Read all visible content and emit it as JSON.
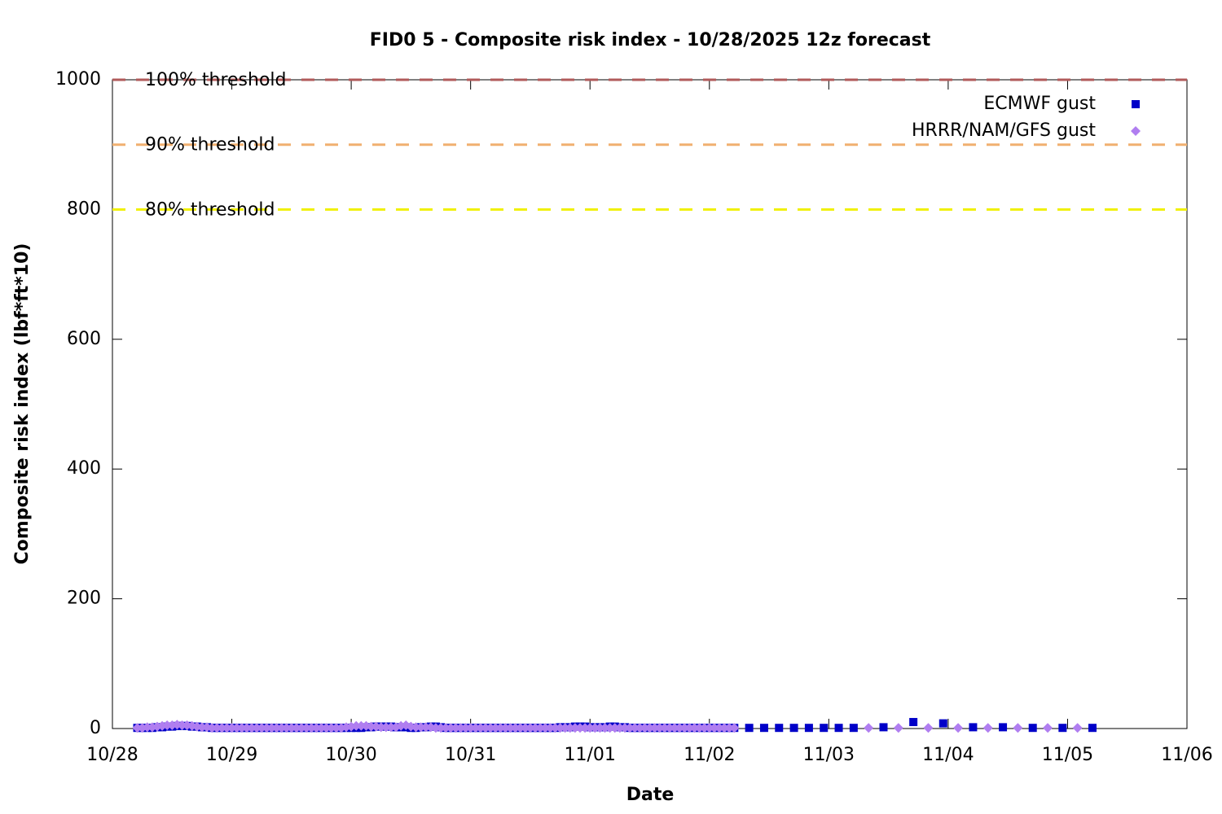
{
  "chart_data": {
    "type": "scatter",
    "title": "FID0 5 - Composite risk index - 10/28/2025 12z forecast",
    "x_label": "Date",
    "y_label": "Composite risk index (lbf*ft*10)",
    "xlim": [
      0,
      216
    ],
    "xticks": [
      {
        "value": 0,
        "label": "10/28"
      },
      {
        "value": 24,
        "label": "10/29"
      },
      {
        "value": 48,
        "label": "10/30"
      },
      {
        "value": 72,
        "label": "10/31"
      },
      {
        "value": 96,
        "label": "11/01"
      },
      {
        "value": 120,
        "label": "11/02"
      },
      {
        "value": 144,
        "label": "11/03"
      },
      {
        "value": 168,
        "label": "11/04"
      },
      {
        "value": 192,
        "label": "11/05"
      },
      {
        "value": 216,
        "label": "11/06"
      }
    ],
    "ylim": [
      0,
      1000
    ],
    "yticks": [
      0,
      200,
      400,
      600,
      800,
      1000
    ],
    "legend": "top-right",
    "thresholds": [
      {
        "value": 1000,
        "label": "100% threshold",
        "color": "#b05a5a"
      },
      {
        "value": 900,
        "label": "90% threshold",
        "color": "#f0b070"
      },
      {
        "value": 800,
        "label": "80% threshold",
        "color": "#f0f000"
      }
    ],
    "series": [
      {
        "name": "ECMWF gust",
        "color": "#0000c8",
        "marker": "square",
        "x": [
          5,
          6,
          7,
          8,
          9,
          10,
          11,
          12,
          13,
          14,
          15,
          16,
          17,
          18,
          19,
          20,
          21,
          22,
          23,
          24,
          25,
          26,
          27,
          28,
          29,
          30,
          31,
          32,
          33,
          34,
          35,
          36,
          37,
          38,
          39,
          40,
          41,
          42,
          43,
          44,
          45,
          46,
          47,
          48,
          49,
          50,
          51,
          52,
          53,
          54,
          55,
          56,
          57,
          58,
          59,
          60,
          61,
          62,
          63,
          64,
          65,
          66,
          67,
          68,
          69,
          70,
          71,
          72,
          73,
          74,
          75,
          76,
          77,
          78,
          79,
          80,
          81,
          82,
          83,
          84,
          85,
          86,
          87,
          88,
          89,
          90,
          91,
          92,
          93,
          94,
          95,
          96,
          97,
          98,
          99,
          100,
          101,
          102,
          103,
          104,
          105,
          106,
          107,
          108,
          109,
          110,
          111,
          112,
          113,
          114,
          115,
          116,
          117,
          118,
          119,
          120,
          121,
          122,
          123,
          124,
          125,
          128,
          131,
          134,
          137,
          140,
          143,
          146,
          149,
          155,
          161,
          167,
          173,
          179,
          185,
          191,
          197
        ],
        "values": [
          1,
          1,
          1,
          1,
          2,
          2,
          3,
          3,
          4,
          4,
          4,
          3,
          3,
          2,
          2,
          1,
          1,
          1,
          1,
          1,
          1,
          1,
          1,
          1,
          1,
          1,
          1,
          1,
          1,
          1,
          1,
          1,
          1,
          1,
          1,
          1,
          1,
          1,
          1,
          1,
          1,
          1,
          1,
          1,
          1,
          1,
          2,
          2,
          3,
          3,
          3,
          3,
          2,
          2,
          2,
          1,
          1,
          2,
          2,
          3,
          3,
          2,
          1,
          1,
          1,
          1,
          1,
          1,
          1,
          1,
          1,
          1,
          1,
          1,
          1,
          1,
          1,
          1,
          1,
          1,
          1,
          1,
          1,
          1,
          1,
          2,
          2,
          2,
          3,
          3,
          3,
          2,
          2,
          2,
          2,
          3,
          3,
          2,
          2,
          1,
          1,
          1,
          1,
          1,
          1,
          1,
          1,
          1,
          1,
          1,
          1,
          1,
          1,
          1,
          1,
          1,
          1,
          1,
          1,
          1,
          1,
          1,
          1,
          1,
          1,
          1,
          1,
          1,
          1,
          2,
          10,
          8,
          2,
          2,
          1,
          1,
          1
        ]
      },
      {
        "name": "HRRR/NAM/GFS gust",
        "color": "#b07ef0",
        "marker": "diamond",
        "x": [
          5,
          6,
          7,
          8,
          9,
          10,
          11,
          12,
          13,
          14,
          15,
          16,
          17,
          18,
          19,
          20,
          21,
          22,
          23,
          24,
          25,
          26,
          27,
          28,
          29,
          30,
          31,
          32,
          33,
          34,
          35,
          36,
          37,
          38,
          39,
          40,
          41,
          42,
          43,
          44,
          45,
          46,
          47,
          48,
          49,
          50,
          51,
          52,
          53,
          54,
          55,
          56,
          57,
          58,
          59,
          60,
          61,
          62,
          63,
          64,
          65,
          66,
          67,
          68,
          69,
          70,
          71,
          72,
          73,
          74,
          75,
          76,
          77,
          78,
          79,
          80,
          81,
          82,
          83,
          84,
          85,
          86,
          87,
          88,
          89,
          90,
          91,
          92,
          93,
          94,
          95,
          96,
          97,
          98,
          99,
          100,
          101,
          102,
          103,
          104,
          105,
          106,
          107,
          108,
          109,
          110,
          111,
          112,
          113,
          114,
          115,
          116,
          117,
          118,
          119,
          120,
          121,
          122,
          123,
          124,
          125,
          152,
          158,
          164,
          170,
          176,
          182,
          188,
          194
        ],
        "values": [
          1,
          1,
          2,
          2,
          3,
          4,
          5,
          5,
          6,
          5,
          5,
          4,
          3,
          2,
          2,
          1,
          1,
          1,
          1,
          1,
          1,
          1,
          1,
          1,
          1,
          1,
          1,
          1,
          1,
          1,
          1,
          1,
          1,
          1,
          1,
          1,
          1,
          1,
          1,
          1,
          1,
          1,
          2,
          3,
          4,
          4,
          4,
          3,
          3,
          2,
          2,
          2,
          2,
          4,
          5,
          3,
          2,
          2,
          2,
          2,
          1,
          1,
          1,
          1,
          1,
          1,
          1,
          1,
          1,
          1,
          1,
          1,
          1,
          1,
          1,
          1,
          1,
          1,
          1,
          1,
          1,
          1,
          1,
          1,
          1,
          1,
          1,
          1,
          1,
          1,
          1,
          1,
          1,
          1,
          1,
          1,
          1,
          1,
          1,
          1,
          1,
          1,
          1,
          1,
          1,
          1,
          1,
          1,
          1,
          1,
          1,
          1,
          1,
          1,
          1,
          1,
          1,
          1,
          1,
          1,
          1,
          1,
          1,
          1,
          1,
          1,
          1,
          1,
          1
        ]
      }
    ]
  }
}
